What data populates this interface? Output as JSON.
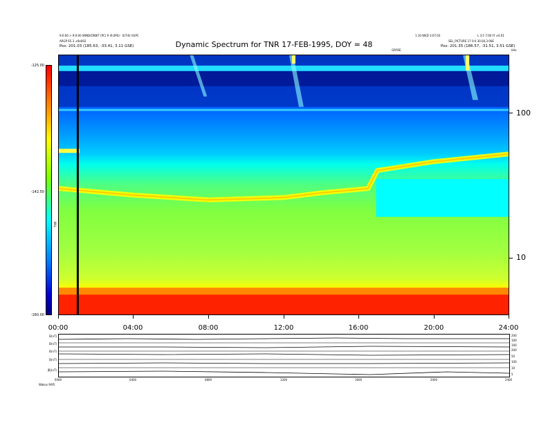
{
  "header": {
    "left_line1": "9:0:00 > 9:0:00 WIND/ORBIT (PC) 9 (9,0PS) - 0/7/0/ (0)PC",
    "left_line2": "ARGP 65.3 ±9e002",
    "left_pos": "Pos:    201.03 (185.63, -33.41, 3.11 GSE)",
    "right_line1": "1.10 WED 3:07:03",
    "right_line2": "L 3:5 7:00 Ft ±0.01",
    "right_line3": "SEL_PICTURE  17 0:0 30.00,3:00E",
    "right_pos": "Pos:  201.35 (186.57, -31.51, 3.51 GSE)",
    "top_right_unit": "kHz",
    "center_small": "GRYDE"
  },
  "chart_data": {
    "type": "heatmap",
    "title": "Dynamic Spectrum for TNR 17-FEB-1995, DOY = 48",
    "x_ticks": [
      "00:00",
      "04:00",
      "08:00",
      "12:00",
      "16:00",
      "20:00",
      "24:00"
    ],
    "y_ticks_right": [
      "100",
      "10"
    ],
    "y_scale": "log",
    "colorbar": {
      "label": "TNR",
      "ticks": [
        "-125.00",
        "-142.50",
        "-160.00"
      ],
      "colors": [
        "#ff0000",
        "#ffff00",
        "#80ff00",
        "#00ffff",
        "#0080ff",
        "#000080"
      ]
    },
    "plasma_line_khz": [
      {
        "t": 0.0,
        "f": 30
      },
      {
        "t": 4.0,
        "f": 27
      },
      {
        "t": 8.0,
        "f": 25
      },
      {
        "t": 12.0,
        "f": 26
      },
      {
        "t": 14.0,
        "f": 28
      },
      {
        "t": 16.5,
        "f": 30
      },
      {
        "t": 17.0,
        "f": 40
      },
      {
        "t": 20.0,
        "f": 46
      },
      {
        "t": 24.0,
        "f": 52
      }
    ],
    "marker_time": "01:00"
  },
  "mag_panel": {
    "left_labels": [
      "B(nT)",
      "B(nT)",
      "B(nT)",
      "B(nT)",
      "|B|(nT)"
    ],
    "right_labels": [
      "200",
      "100",
      "100",
      "200",
      "50",
      "100",
      "10",
      "5"
    ],
    "x_ticks": [
      "0000",
      "0400",
      "0800",
      "1200",
      "1600",
      "2000",
      "2400"
    ],
    "footer_left": "Wakus   9/95"
  }
}
